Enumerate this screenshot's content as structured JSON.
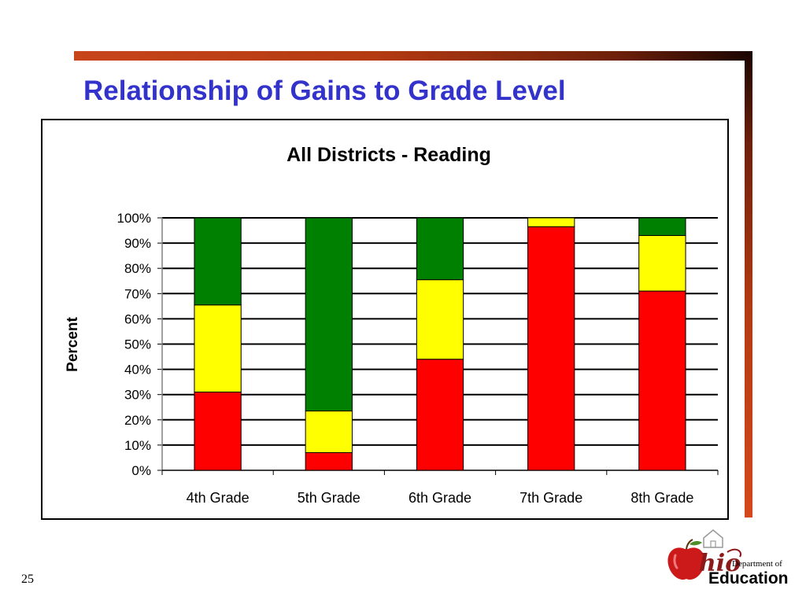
{
  "slide": {
    "title": "Relationship of Gains to Grade Level",
    "page_number": "25"
  },
  "logo": {
    "wordmark": "hio",
    "dept_line": "Department of",
    "org_line": "Education"
  },
  "colors": {
    "accent_bar": "#b33a12",
    "title": "#3333cc",
    "red": "#ff0000",
    "yellow": "#ffff00",
    "green": "#008000"
  },
  "chart_data": {
    "type": "bar",
    "stacked": true,
    "title": "All Districts - Reading",
    "xlabel": "",
    "ylabel": "Percent",
    "ylim": [
      0,
      100
    ],
    "y_ticks": [
      "0%",
      "10%",
      "20%",
      "30%",
      "40%",
      "50%",
      "60%",
      "70%",
      "80%",
      "90%",
      "100%"
    ],
    "grid": true,
    "legend": "none",
    "categories": [
      "4th Grade",
      "5th Grade",
      "6th Grade",
      "7th Grade",
      "8th Grade"
    ],
    "series": [
      {
        "color": "#ff0000",
        "values": [
          31,
          7,
          44,
          96.5,
          71
        ]
      },
      {
        "color": "#ffff00",
        "values": [
          34.5,
          16.5,
          31.5,
          3.5,
          22
        ]
      },
      {
        "color": "#008000",
        "values": [
          34.5,
          76.5,
          24.5,
          0,
          7
        ]
      }
    ]
  }
}
